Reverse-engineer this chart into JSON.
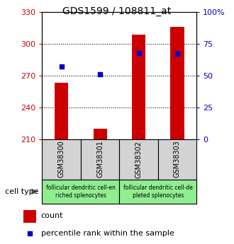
{
  "title": "GDS1599 / 108811_at",
  "samples": [
    "GSM38300",
    "GSM38301",
    "GSM38302",
    "GSM38303"
  ],
  "bar_values": [
    263,
    220,
    309,
    316
  ],
  "bar_bottom": 210,
  "percentile_values": [
    57,
    51,
    68,
    67
  ],
  "ylim_left": [
    210,
    330
  ],
  "ylim_right": [
    0,
    100
  ],
  "yticks_left": [
    210,
    240,
    270,
    300,
    330
  ],
  "yticks_right": [
    0,
    25,
    50,
    75,
    100
  ],
  "ytick_labels_right": [
    "0",
    "25",
    "50",
    "75",
    "100%"
  ],
  "bar_color": "#cc0000",
  "percentile_color": "#0000cc",
  "cell_types": [
    "follicular dendritic cell-en\nriched splenocytes",
    "follicular dendritic cell-de\npleted splenocytes"
  ],
  "cell_type_label": "cell type",
  "legend_count_label": "count",
  "legend_pct_label": "percentile rank within the sample",
  "sample_box_color": "#d3d3d3",
  "cell_type_box_color": "#90EE90",
  "background_color": "#ffffff"
}
